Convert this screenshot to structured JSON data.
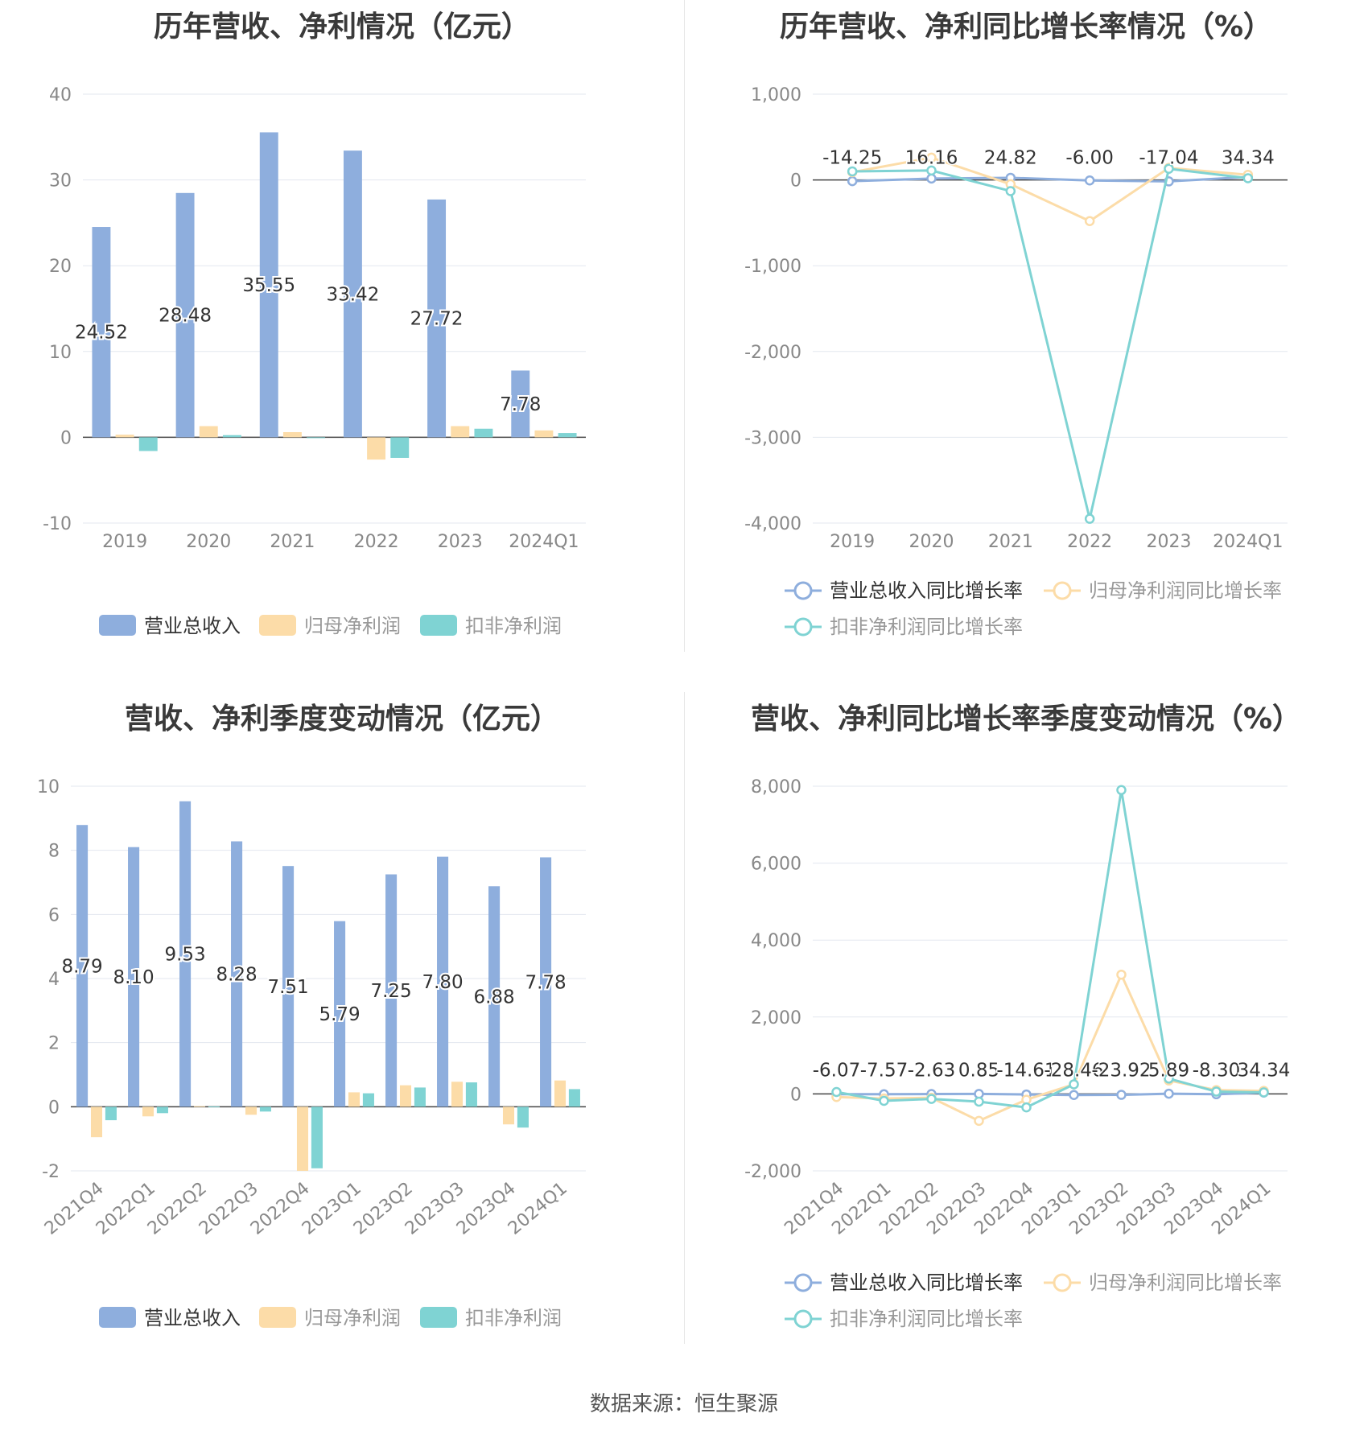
{
  "source": "数据来源：恒生聚源",
  "colors": {
    "blue": "#8eaedd",
    "orange": "#fcdca8",
    "teal": "#7fd3d3",
    "line_blue": "#8eaedd",
    "line_orange": "#fcdca8",
    "line_teal": "#7fd3d3"
  },
  "chart_data": [
    {
      "type": "bar",
      "title": "历年营收、净利情况（亿元）",
      "categories": [
        "2019",
        "2020",
        "2021",
        "2022",
        "2023",
        "2024Q1"
      ],
      "ylim": [
        -10,
        40
      ],
      "yticks": [
        "40",
        "30",
        "20",
        "10",
        "0",
        "-10"
      ],
      "ytick_values": [
        40,
        30,
        20,
        10,
        0,
        -10
      ],
      "series": [
        {
          "name": "营业总收入",
          "color": "#8eaedd",
          "values": [
            24.52,
            28.48,
            35.55,
            33.42,
            27.72,
            7.78
          ],
          "labels": [
            "24.52",
            "28.48",
            "35.55",
            "33.42",
            "27.72",
            "7.78"
          ]
        },
        {
          "name": "归母净利润",
          "color": "#fcdca8",
          "values": [
            0.3,
            1.3,
            0.6,
            -2.6,
            1.3,
            0.8
          ]
        },
        {
          "name": "扣非净利润",
          "color": "#7fd3d3",
          "values": [
            -1.6,
            0.25,
            -0.1,
            -2.4,
            1.0,
            0.5
          ]
        }
      ],
      "legend": "bottom"
    },
    {
      "type": "line",
      "title": "历年营收、净利同比增长率情况（%）",
      "categories": [
        "2019",
        "2020",
        "2021",
        "2022",
        "2023",
        "2024Q1"
      ],
      "ylim": [
        -4000,
        1000
      ],
      "yticks": [
        "1,000",
        "0",
        "-1,000",
        "-2,000",
        "-3,000",
        "-4,000"
      ],
      "ytick_values": [
        1000,
        0,
        -1000,
        -2000,
        -3000,
        -4000
      ],
      "series": [
        {
          "name": "营业总收入同比增长率",
          "color": "#8eaedd",
          "values": [
            -14.25,
            16.16,
            24.82,
            -6.0,
            -17.04,
            34.34
          ],
          "labels": [
            "-14.25",
            "16.16",
            "24.82",
            "-6.00",
            "-17.04",
            "34.34"
          ]
        },
        {
          "name": "归母净利润同比增长率",
          "color": "#fcdca8",
          "values": [
            90,
            260,
            -50,
            -480,
            140,
            60
          ]
        },
        {
          "name": "扣非净利润同比增长率",
          "color": "#7fd3d3",
          "values": [
            100,
            110,
            -130,
            -3950,
            130,
            20
          ]
        }
      ],
      "legend": "bottom"
    },
    {
      "type": "bar",
      "title": "营收、净利季度变动情况（亿元）",
      "categories": [
        "2021Q4",
        "2022Q1",
        "2022Q2",
        "2022Q3",
        "2022Q4",
        "2023Q1",
        "2023Q2",
        "2023Q3",
        "2023Q4",
        "2024Q1"
      ],
      "ylim": [
        -2,
        10
      ],
      "yticks": [
        "10",
        "8",
        "6",
        "4",
        "2",
        "0",
        "-2"
      ],
      "ytick_values": [
        10,
        8,
        6,
        4,
        2,
        0,
        -2
      ],
      "series": [
        {
          "name": "营业总收入",
          "color": "#8eaedd",
          "values": [
            8.79,
            8.1,
            9.53,
            8.28,
            7.51,
            5.79,
            7.25,
            7.8,
            6.88,
            7.78
          ],
          "labels": [
            "8.79",
            "8.10",
            "9.53",
            "8.28",
            "7.51",
            "5.79",
            "7.25",
            "7.80",
            "6.88",
            "7.78"
          ]
        },
        {
          "name": "归母净利润",
          "color": "#fcdca8",
          "values": [
            -0.95,
            -0.3,
            0.02,
            -0.25,
            -2.0,
            0.45,
            0.67,
            0.78,
            -0.55,
            0.82
          ]
        },
        {
          "name": "扣非净利润",
          "color": "#7fd3d3",
          "values": [
            -0.42,
            -0.2,
            0.01,
            -0.15,
            -1.92,
            0.42,
            0.6,
            0.76,
            -0.65,
            0.55
          ]
        }
      ],
      "legend": "bottom"
    },
    {
      "type": "line",
      "title": "营收、净利同比增长率季度变动情况（%）",
      "categories": [
        "2021Q4",
        "2022Q1",
        "2022Q2",
        "2022Q3",
        "2022Q4",
        "2023Q1",
        "2023Q2",
        "2023Q3",
        "2023Q4",
        "2024Q1"
      ],
      "ylim": [
        -2000,
        8000
      ],
      "yticks": [
        "8,000",
        "6,000",
        "4,000",
        "2,000",
        "0",
        "-2,000"
      ],
      "ytick_values": [
        8000,
        6000,
        4000,
        2000,
        0,
        -2000
      ],
      "series": [
        {
          "name": "营业总收入同比增长率",
          "color": "#8eaedd",
          "values": [
            -6.07,
            -7.57,
            -2.63,
            0.85,
            -14.61,
            -28.46,
            -23.92,
            5.89,
            -8.3,
            34.34
          ],
          "labels": [
            "-6.07",
            "-7.57",
            "-2.63",
            "0.85",
            "-14.61",
            "-28.46",
            "-23.92",
            "5.89",
            "-8.30",
            "34.34"
          ]
        },
        {
          "name": "归母净利润同比增长率",
          "color": "#fcdca8",
          "values": [
            -80,
            -120,
            -100,
            -700,
            -150,
            250,
            3100,
            350,
            100,
            80
          ]
        },
        {
          "name": "扣非净利润同比增长率",
          "color": "#7fd3d3",
          "values": [
            50,
            -180,
            -130,
            -200,
            -350,
            250,
            7900,
            400,
            60,
            40
          ]
        }
      ],
      "legend": "bottom"
    }
  ]
}
